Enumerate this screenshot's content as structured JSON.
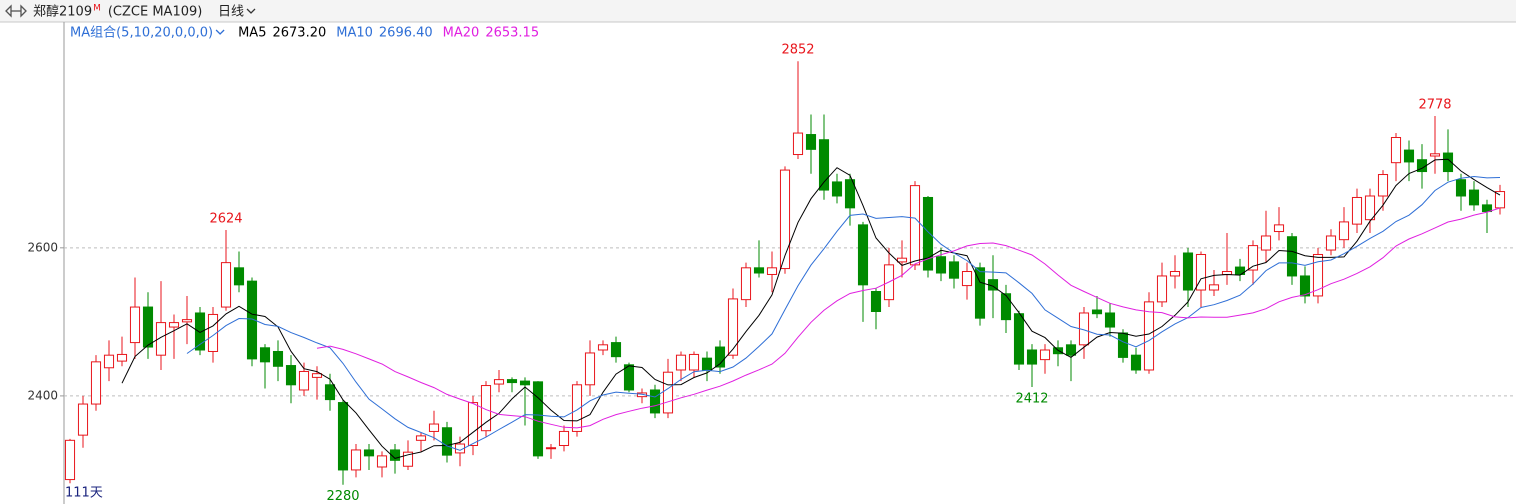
{
  "chart_data": {
    "type": "candlestick",
    "title": "郑醇2109",
    "title_sup": "M",
    "code": "(CZCE MA109)",
    "period": "日线",
    "ma_label": "MA组合(5,10,20,0,0,0)",
    "ma": [
      {
        "name": "MA5",
        "value": 2673.2,
        "value_label": "2673.20",
        "color": "#000000"
      },
      {
        "name": "MA10",
        "value": 2696.4,
        "value_label": "2696.40",
        "color": "#2f6fd6"
      },
      {
        "name": "MA20",
        "value": 2653.15,
        "value_label": "2653.15",
        "color": "#e020e0"
      }
    ],
    "up_color": "#e8161c",
    "down_color": "#008a00",
    "day_count_label": "111天",
    "open": [
      2287,
      2347,
      2389,
      2438,
      2447,
      2472,
      2520,
      2455,
      2493,
      2500,
      2512,
      2460,
      2520,
      2573,
      2555,
      2465,
      2460,
      2441,
      2408,
      2425,
      2415,
      2391,
      2300,
      2327,
      2304,
      2327,
      2305,
      2340,
      2352,
      2357,
      2323,
      2333,
      2353,
      2416,
      2422,
      2420,
      2419,
      2330,
      2333,
      2352,
      2415,
      2462,
      2472,
      2442,
      2399,
      2408,
      2377,
      2435,
      2435,
      2451,
      2466,
      2455,
      2530,
      2573,
      2564,
      2572,
      2726,
      2753,
      2746,
      2689,
      2692,
      2631,
      2541,
      2530,
      2581,
      2577,
      2668,
      2588,
      2581,
      2549,
      2573,
      2557,
      2538,
      2511,
      2462,
      2449,
      2465,
      2469,
      2469,
      2516,
      2512,
      2485,
      2455,
      2435,
      2527,
      2562,
      2593,
      2543,
      2543,
      2564,
      2574,
      2570,
      2597,
      2622,
      2615,
      2562,
      2535,
      2597,
      2611,
      2632,
      2638,
      2670,
      2715,
      2732,
      2719,
      2724,
      2728,
      2692,
      2678,
      2658,
      2654
    ],
    "high": [
      2342,
      2400,
      2455,
      2475,
      2480,
      2560,
      2540,
      2555,
      2510,
      2535,
      2520,
      2520,
      2624,
      2595,
      2560,
      2470,
      2475,
      2455,
      2445,
      2440,
      2430,
      2395,
      2335,
      2335,
      2325,
      2335,
      2340,
      2350,
      2380,
      2365,
      2345,
      2400,
      2420,
      2435,
      2425,
      2425,
      2420,
      2335,
      2360,
      2420,
      2475,
      2475,
      2480,
      2445,
      2410,
      2415,
      2450,
      2460,
      2460,
      2460,
      2475,
      2545,
      2580,
      2610,
      2595,
      2710,
      2852,
      2780,
      2780,
      2700,
      2700,
      2635,
      2545,
      2600,
      2610,
      2690,
      2670,
      2600,
      2590,
      2580,
      2580,
      2590,
      2550,
      2515,
      2470,
      2470,
      2475,
      2475,
      2520,
      2535,
      2525,
      2490,
      2465,
      2540,
      2580,
      2590,
      2600,
      2595,
      2570,
      2620,
      2585,
      2610,
      2650,
      2655,
      2620,
      2575,
      2600,
      2625,
      2655,
      2680,
      2680,
      2705,
      2755,
      2745,
      2740,
      2778,
      2760,
      2700,
      2690,
      2665,
      2685
    ],
    "low": [
      2282,
      2330,
      2380,
      2420,
      2440,
      2450,
      2450,
      2435,
      2450,
      2470,
      2455,
      2445,
      2515,
      2540,
      2440,
      2410,
      2420,
      2390,
      2400,
      2395,
      2380,
      2280,
      2290,
      2300,
      2290,
      2295,
      2300,
      2325,
      2340,
      2310,
      2305,
      2320,
      2345,
      2405,
      2405,
      2360,
      2315,
      2315,
      2325,
      2345,
      2400,
      2455,
      2445,
      2405,
      2390,
      2370,
      2370,
      2420,
      2425,
      2420,
      2430,
      2450,
      2520,
      2560,
      2540,
      2565,
      2720,
      2700,
      2665,
      2660,
      2630,
      2500,
      2490,
      2520,
      2560,
      2570,
      2560,
      2555,
      2545,
      2530,
      2495,
      2505,
      2485,
      2435,
      2412,
      2430,
      2440,
      2420,
      2450,
      2505,
      2480,
      2445,
      2430,
      2430,
      2520,
      2545,
      2520,
      2520,
      2535,
      2550,
      2555,
      2550,
      2580,
      2610,
      2550,
      2525,
      2525,
      2590,
      2600,
      2620,
      2620,
      2650,
      2690,
      2690,
      2680,
      2700,
      2690,
      2650,
      2650,
      2620,
      2645
    ],
    "close": [
      2340,
      2389,
      2446,
      2455,
      2456,
      2520,
      2466,
      2499,
      2499,
      2503,
      2462,
      2510,
      2580,
      2550,
      2450,
      2446,
      2440,
      2415,
      2433,
      2430,
      2395,
      2300,
      2327,
      2319,
      2319,
      2313,
      2324,
      2346,
      2362,
      2320,
      2335,
      2391,
      2414,
      2422,
      2418,
      2415,
      2319,
      2330,
      2352,
      2415,
      2458,
      2469,
      2453,
      2408,
      2404,
      2377,
      2432,
      2455,
      2456,
      2435,
      2439,
      2531,
      2573,
      2566,
      2573,
      2705,
      2755,
      2733,
      2678,
      2670,
      2654,
      2550,
      2514,
      2577,
      2586,
      2684,
      2570,
      2566,
      2559,
      2568,
      2505,
      2543,
      2503,
      2443,
      2443,
      2462,
      2457,
      2455,
      2512,
      2511,
      2493,
      2452,
      2435,
      2527,
      2562,
      2568,
      2543,
      2591,
      2550,
      2568,
      2564,
      2603,
      2616,
      2631,
      2562,
      2535,
      2591,
      2616,
      2635,
      2668,
      2670,
      2699,
      2749,
      2716,
      2703,
      2727,
      2703,
      2670,
      2658,
      2649,
      2676
    ],
    "ylim": [
      2254,
      2905
    ],
    "yticks": [
      2400,
      2600
    ],
    "grid": true
  }
}
